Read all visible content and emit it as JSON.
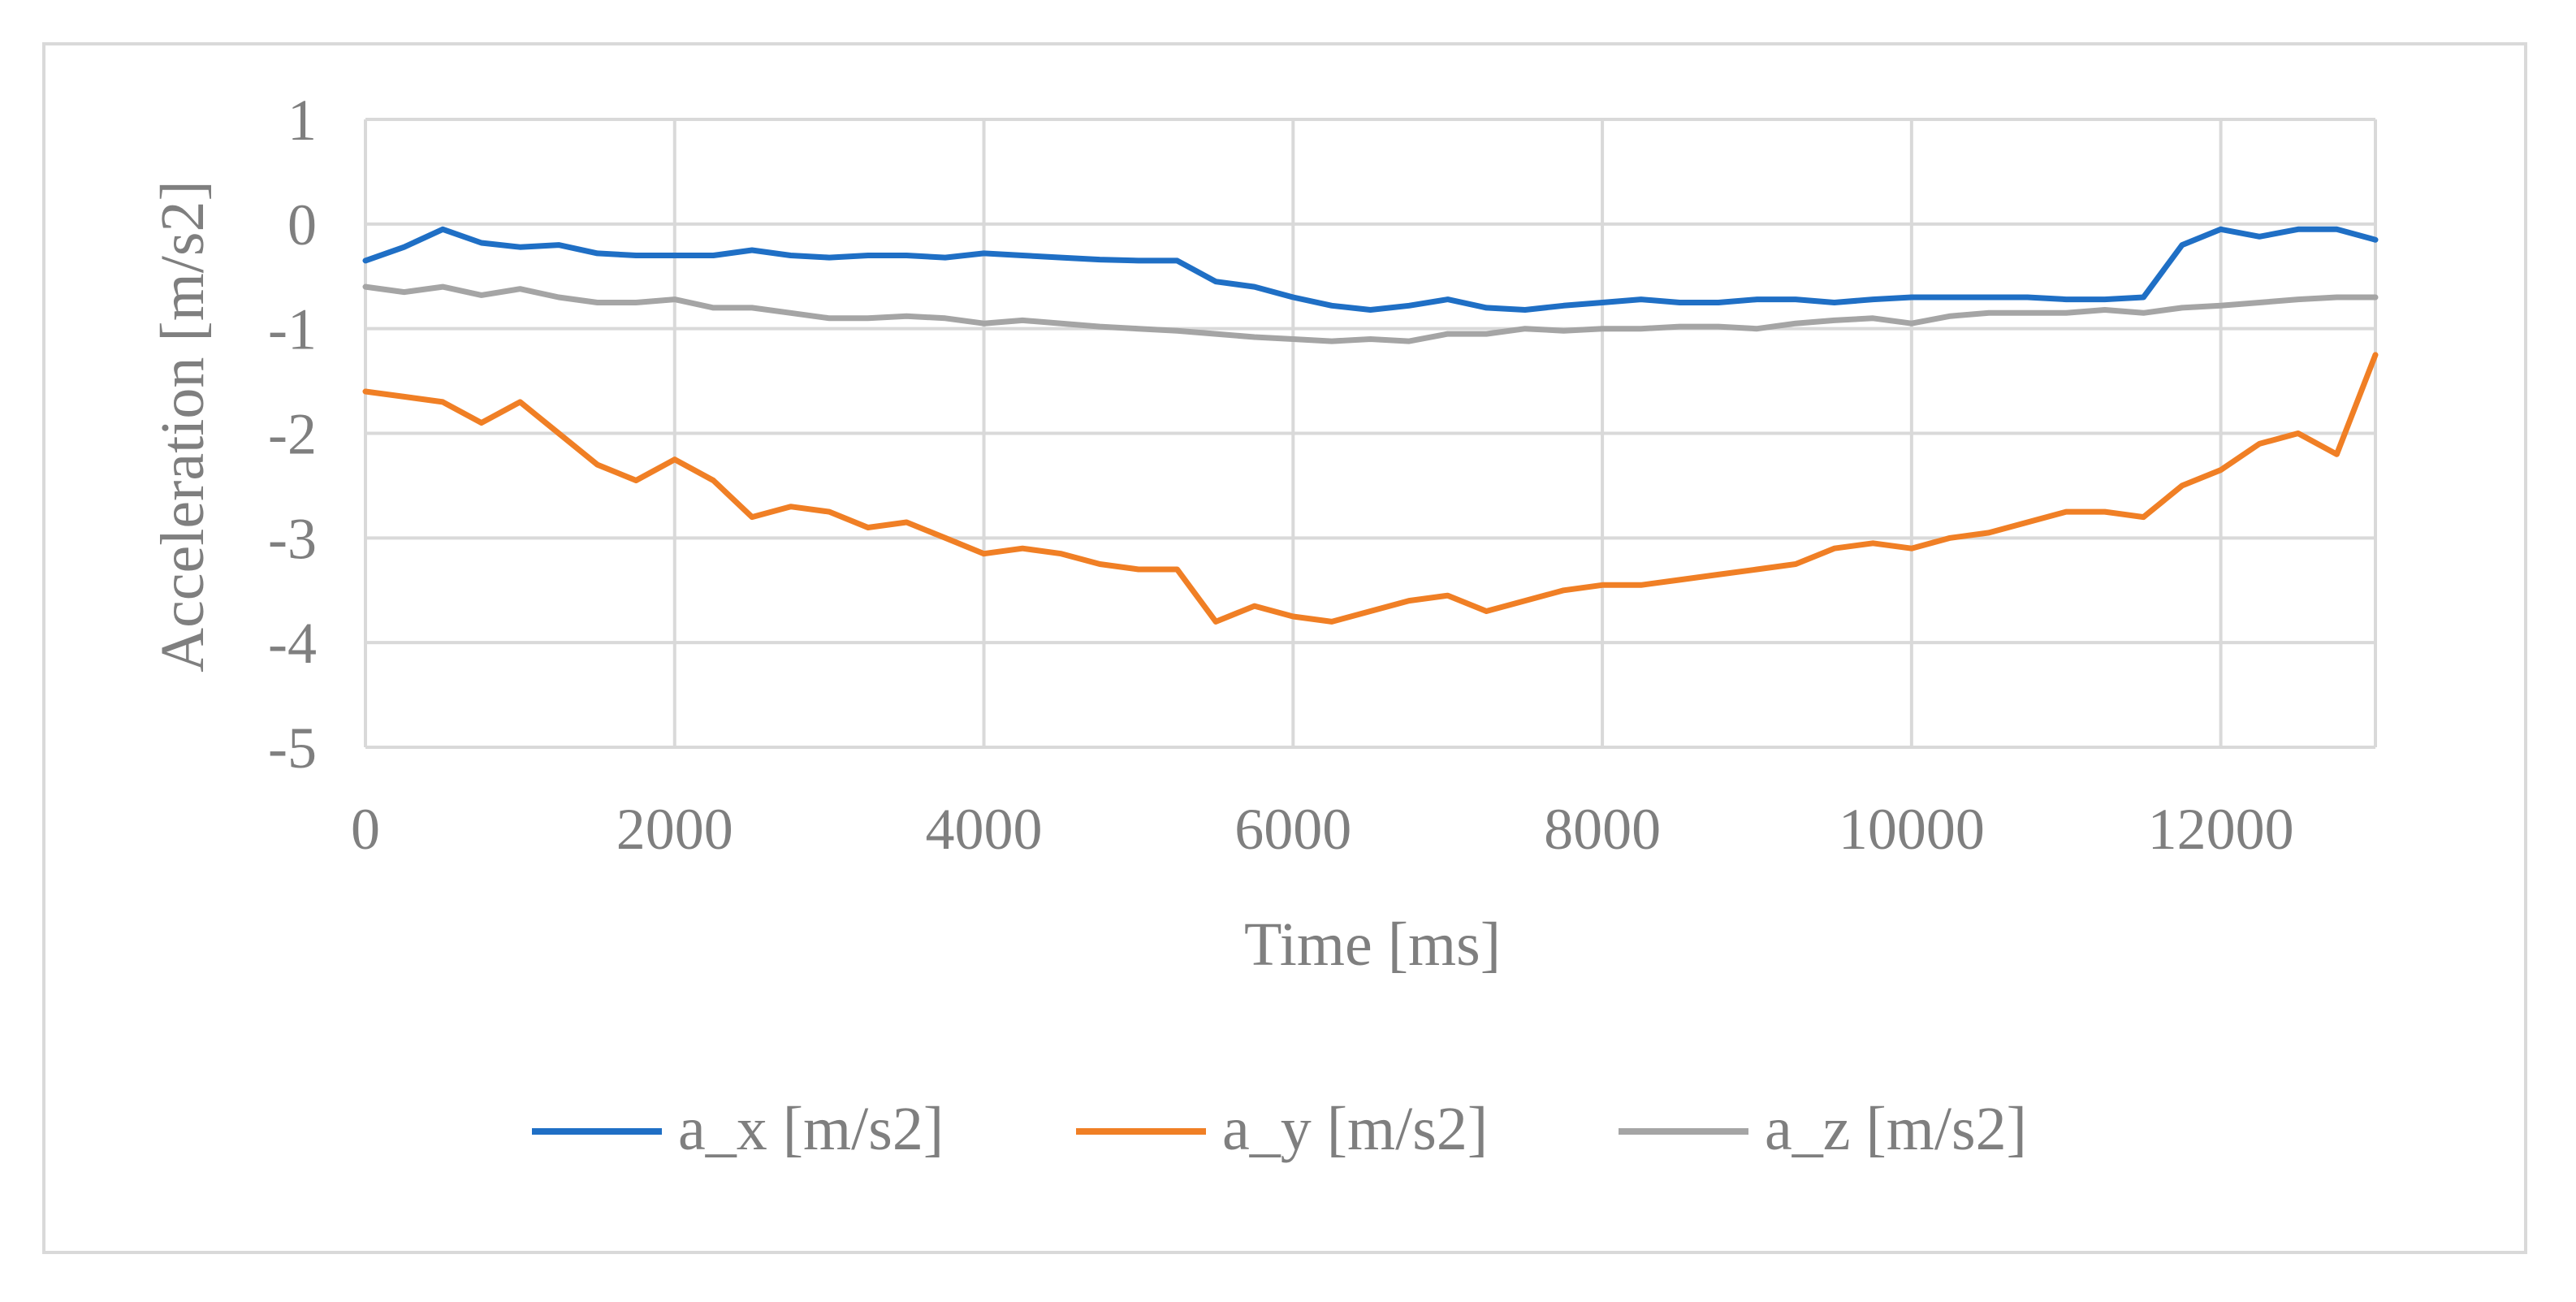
{
  "chart_data": {
    "type": "line",
    "title": "",
    "xlabel": "Time [ms]",
    "ylabel": "Acceleration [m/s2]",
    "xlim": [
      0,
      13000
    ],
    "ylim": [
      -5,
      1
    ],
    "x_ticks": [
      0,
      2000,
      4000,
      6000,
      8000,
      10000,
      12000
    ],
    "x_tick_labels": [
      "0",
      "2000",
      "4000",
      "6000",
      "8000",
      "10000",
      "12000"
    ],
    "y_ticks": [
      1,
      0,
      -1,
      -2,
      -3,
      -4,
      -5
    ],
    "y_tick_labels": [
      "1",
      "0",
      "-1",
      "-2",
      "-3",
      "-4",
      "-5"
    ],
    "grid": true,
    "legend_position": "bottom",
    "x": [
      0,
      250,
      500,
      750,
      1000,
      1250,
      1500,
      1750,
      2000,
      2250,
      2500,
      2750,
      3000,
      3250,
      3500,
      3750,
      4000,
      4250,
      4500,
      4750,
      5000,
      5250,
      5500,
      5750,
      6000,
      6250,
      6500,
      6750,
      7000,
      7250,
      7500,
      7750,
      8000,
      8250,
      8500,
      8750,
      9000,
      9250,
      9500,
      9750,
      10000,
      10250,
      10500,
      10750,
      11000,
      11250,
      11500,
      11750,
      12000,
      12250,
      12500,
      12750,
      13000
    ],
    "series": [
      {
        "name": "a_x [m/s2]",
        "color": "#1f6fc5",
        "values": [
          -0.35,
          -0.22,
          -0.05,
          -0.18,
          -0.22,
          -0.2,
          -0.28,
          -0.3,
          -0.3,
          -0.3,
          -0.25,
          -0.3,
          -0.32,
          -0.3,
          -0.3,
          -0.32,
          -0.28,
          -0.3,
          -0.32,
          -0.34,
          -0.35,
          -0.35,
          -0.55,
          -0.6,
          -0.7,
          -0.78,
          -0.82,
          -0.78,
          -0.72,
          -0.8,
          -0.82,
          -0.78,
          -0.75,
          -0.72,
          -0.75,
          -0.75,
          -0.72,
          -0.72,
          -0.75,
          -0.72,
          -0.7,
          -0.7,
          -0.7,
          -0.7,
          -0.72,
          -0.72,
          -0.7,
          -0.2,
          -0.05,
          -0.12,
          -0.05,
          -0.05,
          -0.15
        ]
      },
      {
        "name": "a_y [m/s2]",
        "color": "#f07f25",
        "values": [
          -1.6,
          -1.65,
          -1.7,
          -1.9,
          -1.7,
          -2.0,
          -2.3,
          -2.45,
          -2.25,
          -2.45,
          -2.8,
          -2.7,
          -2.75,
          -2.9,
          -2.85,
          -3.0,
          -3.15,
          -3.1,
          -3.15,
          -3.25,
          -3.3,
          -3.3,
          -3.8,
          -3.65,
          -3.75,
          -3.8,
          -3.7,
          -3.6,
          -3.55,
          -3.7,
          -3.6,
          -3.5,
          -3.45,
          -3.45,
          -3.4,
          -3.35,
          -3.3,
          -3.25,
          -3.1,
          -3.05,
          -3.1,
          -3.0,
          -2.95,
          -2.85,
          -2.75,
          -2.75,
          -2.8,
          -2.5,
          -2.35,
          -2.1,
          -2.0,
          -2.2,
          -1.25
        ]
      },
      {
        "name": "a_z [m/s2]",
        "color": "#a5a5a5",
        "values": [
          -0.6,
          -0.65,
          -0.6,
          -0.68,
          -0.62,
          -0.7,
          -0.75,
          -0.75,
          -0.72,
          -0.8,
          -0.8,
          -0.85,
          -0.9,
          -0.9,
          -0.88,
          -0.9,
          -0.95,
          -0.92,
          -0.95,
          -0.98,
          -1.0,
          -1.02,
          -1.05,
          -1.08,
          -1.1,
          -1.12,
          -1.1,
          -1.12,
          -1.05,
          -1.05,
          -1.0,
          -1.02,
          -1.0,
          -1.0,
          -0.98,
          -0.98,
          -1.0,
          -0.95,
          -0.92,
          -0.9,
          -0.95,
          -0.88,
          -0.85,
          -0.85,
          -0.85,
          -0.82,
          -0.85,
          -0.8,
          -0.78,
          -0.75,
          -0.72,
          -0.7,
          -0.7
        ]
      }
    ]
  }
}
